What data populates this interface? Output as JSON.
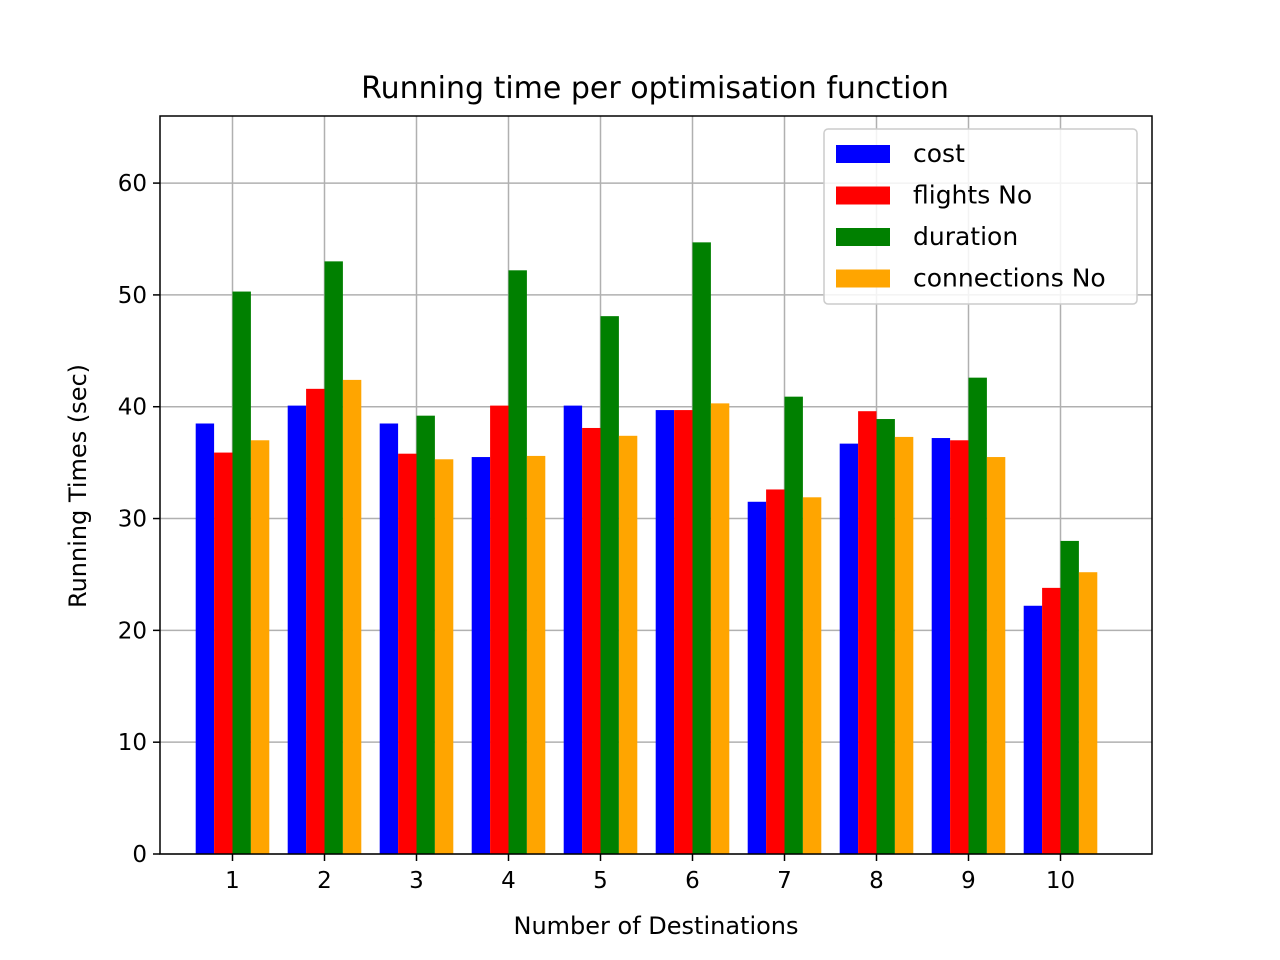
{
  "chart_data": {
    "type": "bar",
    "title": "Running time per optimisation function",
    "xlabel": "Number of Destinations",
    "ylabel": "Running Times (sec)",
    "categories": [
      "1",
      "2",
      "3",
      "4",
      "5",
      "6",
      "7",
      "8",
      "9",
      "10"
    ],
    "yticks": [
      "0",
      "10",
      "20",
      "30",
      "40",
      "50",
      "60"
    ],
    "ylim": [
      0,
      66
    ],
    "grid": true,
    "legend_position": "top-right",
    "series": [
      {
        "name": "cost",
        "color": "#0000ff",
        "values": [
          38.5,
          40.1,
          38.5,
          35.5,
          40.1,
          39.7,
          31.5,
          36.7,
          37.2,
          22.2
        ]
      },
      {
        "name": "flights No",
        "color": "#ff0000",
        "values": [
          35.9,
          41.6,
          35.8,
          40.1,
          38.1,
          39.7,
          32.6,
          39.6,
          37.0,
          23.8
        ]
      },
      {
        "name": "duration",
        "color": "#008000",
        "values": [
          50.3,
          53.0,
          39.2,
          52.2,
          48.1,
          54.7,
          40.9,
          38.9,
          42.6,
          28.0
        ]
      },
      {
        "name": "connections No",
        "color": "#ffa500",
        "values": [
          37.0,
          42.4,
          35.3,
          35.6,
          37.4,
          40.3,
          31.9,
          37.3,
          35.5,
          25.2
        ]
      }
    ]
  }
}
